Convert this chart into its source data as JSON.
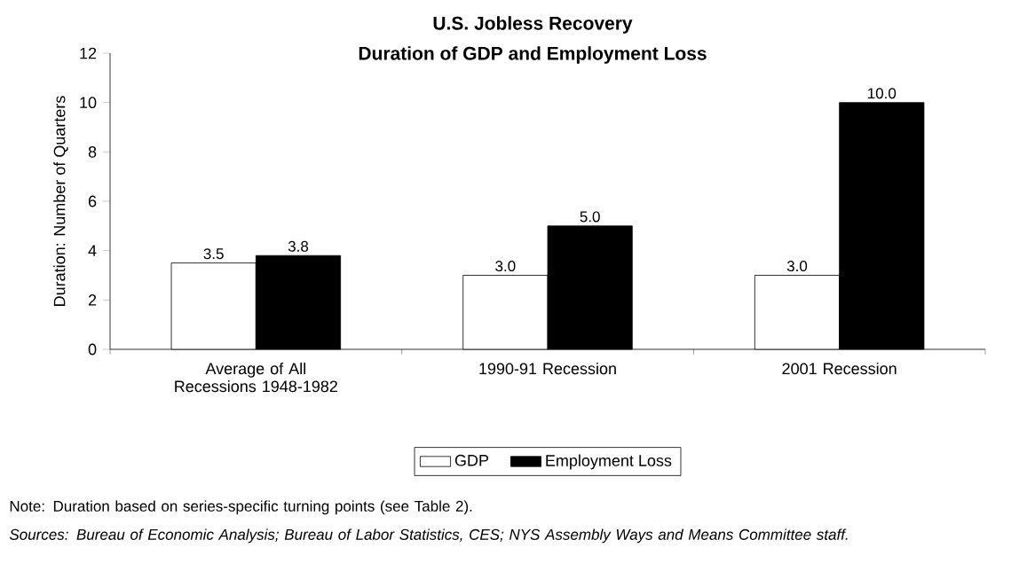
{
  "chart_data": {
    "type": "bar",
    "title": "U.S. Jobless Recovery",
    "subtitle": "Duration of GDP and Employment Loss",
    "ylabel": "Duration: Number of Quarters",
    "categories": [
      "Average of All Recessions 1948-1982",
      "1990-91 Recession",
      "2001 Recession"
    ],
    "series": [
      {
        "name": "GDP",
        "color": "#ffffff",
        "values": [
          3.5,
          3.0,
          3.0
        ],
        "value_labels": [
          "3.5",
          "3.0",
          "3.0"
        ]
      },
      {
        "name": "Employment Loss",
        "color": "#000000",
        "values": [
          3.8,
          5.0,
          10.0
        ],
        "value_labels": [
          "3.8",
          "5.0",
          "10.0"
        ]
      }
    ],
    "ylim": [
      0,
      12
    ],
    "yticks": [
      0,
      2,
      4,
      6,
      8,
      10,
      12
    ],
    "grid": false,
    "legend": "bottom",
    "annotations": [
      "Note: Duration based on series-specific turning points (see Table 2).",
      "Sources: Bureau of Economic Analysis; Bureau of Labor Statistics, CES; NYS Assembly Ways and Means Committee staff."
    ]
  }
}
